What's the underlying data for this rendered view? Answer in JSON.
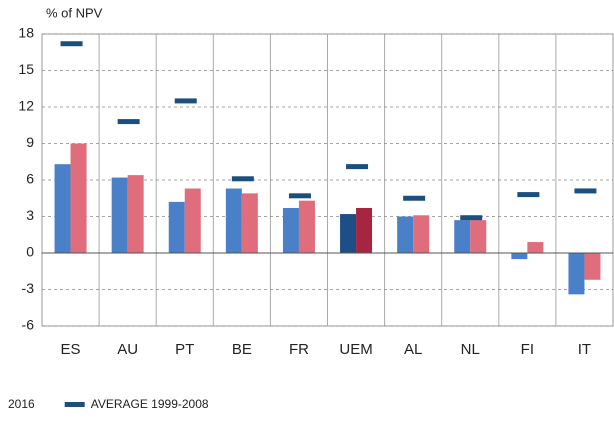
{
  "chart_data": {
    "type": "bar",
    "y_label": "% of NPV",
    "categories": [
      "ES",
      "AU",
      "PT",
      "BE",
      "FR",
      "UEM",
      "AL",
      "NL",
      "FI",
      "IT"
    ],
    "series": [
      {
        "colors": [
          "#4a80c8",
          "#4a80c8",
          "#4a80c8",
          "#4a80c8",
          "#4a80c8",
          "#1d4f86",
          "#4a80c8",
          "#4a80c8",
          "#4a80c8",
          "#4a80c8"
        ],
        "values": [
          7.3,
          6.2,
          4.2,
          5.3,
          3.7,
          3.2,
          3.0,
          2.7,
          -0.5,
          -3.4
        ]
      },
      {
        "name": "2016",
        "colors": [
          "#e06d7b",
          "#e06d7b",
          "#e06d7b",
          "#e06d7b",
          "#e06d7b",
          "#a62540",
          "#e06d7b",
          "#e06d7b",
          "#e06d7b",
          "#e06d7b"
        ],
        "values": [
          9.0,
          6.4,
          5.3,
          4.9,
          4.3,
          3.7,
          3.1,
          2.7,
          0.9,
          -2.2
        ]
      },
      {
        "name": "AVERAGE 1999-2008",
        "type": "marker",
        "color": "#1b4f7e",
        "values": [
          17.2,
          10.8,
          12.5,
          6.1,
          4.7,
          7.1,
          4.5,
          2.9,
          4.8,
          5.1
        ]
      }
    ],
    "ylim": [
      -6,
      18
    ],
    "yticks": [
      -6,
      -3,
      0,
      3,
      6,
      9,
      12,
      15,
      18
    ],
    "grid": true
  }
}
